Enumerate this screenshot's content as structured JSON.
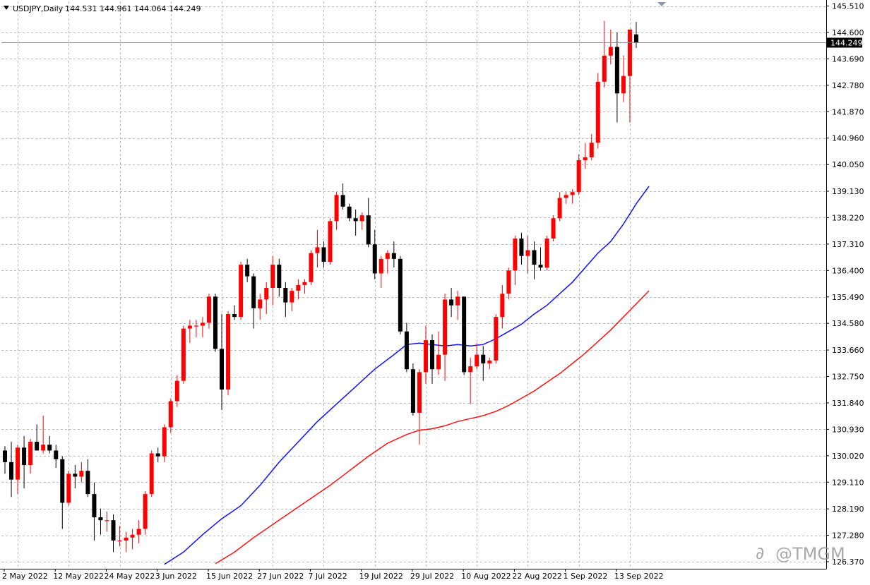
{
  "header": {
    "symbol_label": "USDJPY,Daily",
    "ohlc": "144.531 144.961 144.064 144.249"
  },
  "watermark": {
    "text": "@TMGM"
  },
  "colors": {
    "up": "#ff0000",
    "down": "#000000",
    "ma_fast": "#1010ff",
    "ma_slow": "#ff1010",
    "grid": "#b8b8b8",
    "current_price_bg": "#000000"
  },
  "chart_data": {
    "type": "candlestick",
    "symbol": "USDJPY",
    "timeframe": "Daily",
    "ylim": [
      126.35,
      145.9
    ],
    "y_ticks": [
      "145.510",
      "144.600",
      "143.690",
      "142.780",
      "141.870",
      "140.960",
      "140.050",
      "139.130",
      "138.220",
      "137.310",
      "136.400",
      "135.490",
      "134.580",
      "133.660",
      "132.750",
      "131.840",
      "130.930",
      "130.020",
      "129.110",
      "128.190",
      "127.280",
      "126.370"
    ],
    "x_labels": [
      "2 May 2022",
      "12 May 2022",
      "24 May 2022",
      "3 Jun 2022",
      "15 Jun 2022",
      "27 Jun 2022",
      "7 Jul 2022",
      "19 Jul 2022",
      "29 Jul 2022",
      "10 Aug 2022",
      "22 Aug 2022",
      "1 Sep 2022",
      "13 Sep 2022"
    ],
    "x_label_indices": [
      0,
      8,
      16,
      24,
      32,
      40,
      48,
      56,
      64,
      72,
      80,
      88,
      96
    ],
    "current_price": "144.249",
    "grid": true,
    "candles": [
      [
        130.2,
        130.35,
        129.4,
        129.8
      ],
      [
        129.8,
        130.5,
        128.6,
        129.2
      ],
      [
        129.2,
        130.4,
        128.7,
        130.3
      ],
      [
        130.3,
        130.7,
        128.9,
        129.7
      ],
      [
        129.7,
        130.6,
        129.4,
        130.5
      ],
      [
        130.5,
        131.1,
        130.2,
        130.2
      ],
      [
        130.2,
        131.4,
        130.1,
        130.4
      ],
      [
        130.4,
        130.7,
        130.1,
        130.2
      ],
      [
        130.2,
        130.4,
        129.6,
        129.9
      ],
      [
        129.9,
        130.0,
        127.5,
        128.4
      ],
      [
        128.4,
        129.5,
        128.3,
        129.4
      ],
      [
        129.4,
        129.7,
        128.9,
        129.3
      ],
      [
        129.3,
        129.8,
        129.1,
        129.5
      ],
      [
        129.5,
        129.9,
        128.6,
        128.7
      ],
      [
        128.7,
        129.1,
        127.1,
        127.9
      ],
      [
        127.9,
        128.2,
        127.3,
        127.8
      ],
      [
        127.8,
        128.1,
        127.4,
        127.8
      ],
      [
        127.8,
        128.0,
        126.7,
        127.1
      ],
      [
        127.1,
        127.6,
        126.9,
        127.1
      ],
      [
        127.1,
        127.4,
        126.7,
        127.2
      ],
      [
        127.2,
        127.5,
        126.8,
        127.3
      ],
      [
        127.3,
        127.8,
        127.0,
        127.5
      ],
      [
        127.5,
        128.8,
        127.3,
        128.7
      ],
      [
        128.7,
        130.2,
        128.6,
        130.1
      ],
      [
        130.1,
        130.3,
        129.8,
        130.0
      ],
      [
        130.0,
        131.1,
        129.8,
        131.0
      ],
      [
        131.0,
        132.0,
        130.8,
        131.9
      ],
      [
        131.9,
        132.8,
        131.7,
        132.6
      ],
      [
        132.6,
        134.5,
        132.5,
        134.4
      ],
      [
        134.4,
        134.7,
        133.9,
        134.5
      ],
      [
        134.5,
        134.7,
        134.1,
        134.5
      ],
      [
        134.5,
        134.8,
        134.1,
        134.6
      ],
      [
        134.6,
        135.6,
        134.4,
        135.5
      ],
      [
        135.5,
        135.6,
        133.6,
        133.7
      ],
      [
        133.7,
        134.9,
        131.6,
        132.3
      ],
      [
        132.3,
        135.0,
        132.1,
        134.9
      ],
      [
        134.9,
        135.2,
        134.7,
        134.8
      ],
      [
        134.8,
        136.7,
        134.7,
        136.6
      ],
      [
        136.6,
        136.8,
        136.0,
        136.2
      ],
      [
        136.2,
        136.3,
        134.4,
        135.1
      ],
      [
        135.1,
        135.6,
        134.7,
        135.4
      ],
      [
        135.4,
        136.0,
        134.9,
        135.8
      ],
      [
        135.8,
        136.9,
        135.2,
        136.6
      ],
      [
        136.6,
        136.8,
        135.5,
        135.8
      ],
      [
        135.8,
        136.0,
        134.8,
        135.3
      ],
      [
        135.3,
        135.8,
        135.0,
        135.7
      ],
      [
        135.7,
        136.1,
        135.4,
        135.9
      ],
      [
        135.9,
        136.1,
        135.6,
        136.0
      ],
      [
        136.0,
        137.1,
        135.9,
        137.0
      ],
      [
        137.0,
        137.8,
        136.5,
        137.2
      ],
      [
        137.2,
        137.4,
        136.5,
        136.7
      ],
      [
        136.7,
        138.2,
        136.6,
        138.1
      ],
      [
        138.1,
        139.1,
        137.8,
        139.0
      ],
      [
        139.0,
        139.4,
        138.5,
        138.6
      ],
      [
        138.6,
        138.7,
        138.1,
        138.2
      ],
      [
        138.2,
        138.5,
        137.6,
        138.1
      ],
      [
        138.1,
        138.4,
        137.8,
        138.3
      ],
      [
        138.3,
        138.9,
        137.2,
        137.3
      ],
      [
        137.3,
        137.8,
        136.1,
        136.3
      ],
      [
        136.3,
        136.9,
        135.8,
        136.8
      ],
      [
        136.8,
        137.1,
        136.3,
        137.0
      ],
      [
        137.0,
        137.4,
        136.5,
        136.8
      ],
      [
        136.8,
        136.9,
        134.2,
        134.3
      ],
      [
        134.3,
        134.6,
        132.9,
        133.0
      ],
      [
        133.0,
        133.2,
        131.4,
        131.5
      ],
      [
        131.5,
        133.0,
        130.4,
        132.9
      ],
      [
        132.9,
        134.5,
        132.5,
        134.0
      ],
      [
        134.0,
        134.2,
        132.5,
        133.0
      ],
      [
        133.0,
        134.3,
        132.8,
        133.5
      ],
      [
        133.5,
        135.6,
        132.6,
        135.4
      ],
      [
        135.4,
        135.8,
        134.8,
        135.2
      ],
      [
        135.2,
        135.7,
        134.7,
        135.5
      ],
      [
        135.5,
        135.5,
        132.8,
        132.9
      ],
      [
        132.9,
        133.4,
        131.8,
        133.1
      ],
      [
        133.1,
        133.9,
        133.0,
        133.5
      ],
      [
        133.5,
        133.8,
        132.6,
        133.2
      ],
      [
        133.2,
        133.4,
        133.0,
        133.3
      ],
      [
        133.3,
        134.9,
        133.2,
        134.8
      ],
      [
        134.8,
        135.9,
        134.4,
        135.6
      ],
      [
        135.6,
        136.5,
        135.4,
        136.4
      ],
      [
        136.4,
        137.6,
        135.9,
        137.5
      ],
      [
        137.5,
        137.7,
        136.6,
        136.9
      ],
      [
        136.9,
        137.6,
        136.3,
        137.1
      ],
      [
        137.1,
        137.4,
        136.1,
        136.6
      ],
      [
        136.6,
        137.2,
        136.4,
        136.5
      ],
      [
        136.5,
        137.6,
        136.4,
        137.5
      ],
      [
        137.5,
        138.3,
        137.4,
        138.2
      ],
      [
        138.2,
        139.1,
        138.1,
        138.9
      ],
      [
        138.9,
        139.1,
        138.7,
        139.0
      ],
      [
        139.0,
        139.2,
        138.7,
        139.1
      ],
      [
        139.1,
        140.4,
        139.0,
        140.2
      ],
      [
        140.2,
        140.8,
        139.9,
        140.3
      ],
      [
        140.3,
        141.1,
        140.2,
        140.8
      ],
      [
        140.8,
        143.2,
        140.6,
        142.9
      ],
      [
        142.9,
        145.0,
        142.7,
        143.8
      ],
      [
        143.8,
        144.7,
        143.5,
        144.1
      ],
      [
        144.1,
        144.6,
        141.5,
        142.5
      ],
      [
        142.5,
        143.8,
        142.2,
        143.1
      ],
      [
        143.1,
        144.7,
        141.5,
        144.7
      ],
      [
        144.531,
        144.961,
        144.064,
        144.249
      ]
    ],
    "ma_fast": [
      [
        25,
        126.28
      ],
      [
        28,
        126.7
      ],
      [
        31,
        127.3
      ],
      [
        34,
        127.85
      ],
      [
        37,
        128.3
      ],
      [
        40,
        129.0
      ],
      [
        43,
        129.8
      ],
      [
        46,
        130.5
      ],
      [
        49,
        131.2
      ],
      [
        52,
        131.8
      ],
      [
        55,
        132.4
      ],
      [
        58,
        133.0
      ],
      [
        61,
        133.5
      ],
      [
        63,
        133.85
      ],
      [
        65,
        133.9
      ],
      [
        67,
        133.85
      ],
      [
        69,
        133.8
      ],
      [
        71,
        133.85
      ],
      [
        73,
        133.8
      ],
      [
        75,
        133.85
      ],
      [
        77,
        134.05
      ],
      [
        79,
        134.3
      ],
      [
        81,
        134.55
      ],
      [
        83,
        134.9
      ],
      [
        85,
        135.2
      ],
      [
        87,
        135.6
      ],
      [
        89,
        136.0
      ],
      [
        91,
        136.5
      ],
      [
        93,
        137.0
      ],
      [
        95,
        137.4
      ],
      [
        97,
        138.0
      ],
      [
        99,
        138.7
      ],
      [
        101,
        139.3
      ]
    ],
    "ma_slow": [
      [
        33,
        126.3
      ],
      [
        36,
        126.7
      ],
      [
        39,
        127.2
      ],
      [
        42,
        127.65
      ],
      [
        45,
        128.1
      ],
      [
        48,
        128.55
      ],
      [
        51,
        129.0
      ],
      [
        54,
        129.5
      ],
      [
        57,
        130.0
      ],
      [
        60,
        130.45
      ],
      [
        63,
        130.75
      ],
      [
        65,
        130.9
      ],
      [
        67,
        130.95
      ],
      [
        69,
        131.05
      ],
      [
        71,
        131.2
      ],
      [
        73,
        131.3
      ],
      [
        75,
        131.4
      ],
      [
        77,
        131.55
      ],
      [
        79,
        131.75
      ],
      [
        81,
        132.0
      ],
      [
        83,
        132.25
      ],
      [
        85,
        132.55
      ],
      [
        87,
        132.85
      ],
      [
        89,
        133.2
      ],
      [
        91,
        133.55
      ],
      [
        93,
        133.95
      ],
      [
        95,
        134.35
      ],
      [
        97,
        134.8
      ],
      [
        99,
        135.25
      ],
      [
        101,
        135.7
      ]
    ]
  }
}
